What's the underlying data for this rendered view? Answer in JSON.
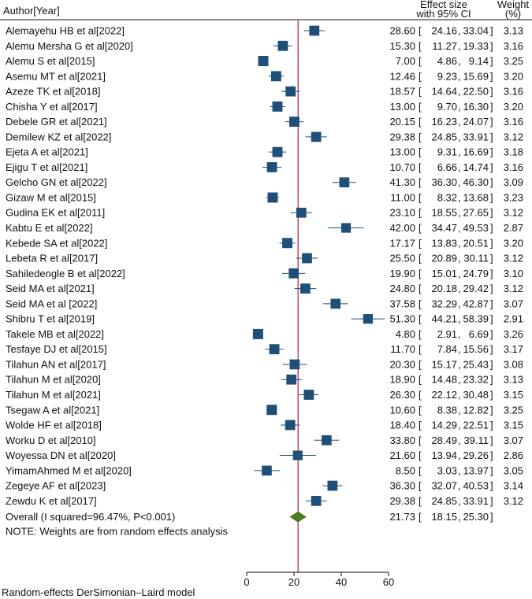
{
  "chart_data": {
    "type": "forest",
    "header": {
      "author_col": "Author[Year]",
      "effect_col_line1": "Effect size",
      "effect_col_line2": "with 95% CI",
      "weight_col_line1": "Weight",
      "weight_col_line2": "(%)"
    },
    "studies": [
      {
        "label": "Alemayehu HB et al[2022]",
        "es": 28.6,
        "lo": 24.16,
        "hi": 33.04,
        "es_text": "28.60",
        "lo_text": "24.16",
        "hi_text": "33.04",
        "weight": 3.13,
        "weight_text": "3.13"
      },
      {
        "label": "Alemu Mersha G et al[2020]",
        "es": 15.3,
        "lo": 11.27,
        "hi": 19.33,
        "es_text": "15.30",
        "lo_text": "11.27",
        "hi_text": "19.33",
        "weight": 3.16,
        "weight_text": "3.16"
      },
      {
        "label": "Alemu S et al[2015]",
        "es": 7.0,
        "lo": 4.86,
        "hi": 9.14,
        "es_text": "7.00",
        "lo_text": "4.86",
        "hi_text": "9.14",
        "weight": 3.25,
        "weight_text": "3.25"
      },
      {
        "label": "Asemu MT et al[2021]",
        "es": 12.46,
        "lo": 9.23,
        "hi": 15.69,
        "es_text": "12.46",
        "lo_text": "9.23",
        "hi_text": "15.69",
        "weight": 3.2,
        "weight_text": "3.20"
      },
      {
        "label": "Azeze TK et al[2018]",
        "es": 18.57,
        "lo": 14.64,
        "hi": 22.5,
        "es_text": "18.57",
        "lo_text": "14.64",
        "hi_text": "22.50",
        "weight": 3.16,
        "weight_text": "3.16"
      },
      {
        "label": "Chisha Y et al[2017]",
        "es": 13.0,
        "lo": 9.7,
        "hi": 16.3,
        "es_text": "13.00",
        "lo_text": "9.70",
        "hi_text": "16.30",
        "weight": 3.2,
        "weight_text": "3.20"
      },
      {
        "label": "Debele GR et al[2021]",
        "es": 20.15,
        "lo": 16.23,
        "hi": 24.07,
        "es_text": "20.15",
        "lo_text": "16.23",
        "hi_text": "24.07",
        "weight": 3.16,
        "weight_text": "3.16"
      },
      {
        "label": "Demilew KZ et al[2022]",
        "es": 29.38,
        "lo": 24.85,
        "hi": 33.91,
        "es_text": "29.38",
        "lo_text": "24.85",
        "hi_text": "33.91",
        "weight": 3.12,
        "weight_text": "3.12"
      },
      {
        "label": "Ejeta A et al[2021]",
        "es": 13.0,
        "lo": 9.31,
        "hi": 16.69,
        "es_text": "13.00",
        "lo_text": "9.31",
        "hi_text": "16.69",
        "weight": 3.18,
        "weight_text": "3.18"
      },
      {
        "label": "Ejigu T et al[2021]",
        "es": 10.7,
        "lo": 6.66,
        "hi": 14.74,
        "es_text": "10.70",
        "lo_text": "6.66",
        "hi_text": "14.74",
        "weight": 3.16,
        "weight_text": "3.16"
      },
      {
        "label": "Gelcho GN et al[2022]",
        "es": 41.3,
        "lo": 36.3,
        "hi": 46.3,
        "es_text": "41.30",
        "lo_text": "36.30",
        "hi_text": "46.30",
        "weight": 3.09,
        "weight_text": "3.09"
      },
      {
        "label": "Gizaw M et al[2015]",
        "es": 11.0,
        "lo": 8.32,
        "hi": 13.68,
        "es_text": "11.00",
        "lo_text": "8.32",
        "hi_text": "13.68",
        "weight": 3.23,
        "weight_text": "3.23"
      },
      {
        "label": "Gudina EK et al[2011]",
        "es": 23.1,
        "lo": 18.55,
        "hi": 27.65,
        "es_text": "23.10",
        "lo_text": "18.55",
        "hi_text": "27.65",
        "weight": 3.12,
        "weight_text": "3.12"
      },
      {
        "label": "Kabtu E et al[2022]",
        "es": 42.0,
        "lo": 34.47,
        "hi": 49.53,
        "es_text": "42.00",
        "lo_text": "34.47",
        "hi_text": "49.53",
        "weight": 2.87,
        "weight_text": "2.87"
      },
      {
        "label": "Kebede SA et al[2022]",
        "es": 17.17,
        "lo": 13.83,
        "hi": 20.51,
        "es_text": "17.17",
        "lo_text": "13.83",
        "hi_text": "20.51",
        "weight": 3.2,
        "weight_text": "3.20"
      },
      {
        "label": "Lebeta R et al[2017]",
        "es": 25.5,
        "lo": 20.89,
        "hi": 30.11,
        "es_text": "25.50",
        "lo_text": "20.89",
        "hi_text": "30.11",
        "weight": 3.12,
        "weight_text": "3.12"
      },
      {
        "label": "Sahiledengle B et al[2022]",
        "es": 19.9,
        "lo": 15.01,
        "hi": 24.79,
        "es_text": "19.90",
        "lo_text": "15.01",
        "hi_text": "24.79",
        "weight": 3.1,
        "weight_text": "3.10"
      },
      {
        "label": "Seid MA et al[2021]",
        "es": 24.8,
        "lo": 20.18,
        "hi": 29.42,
        "es_text": "24.80",
        "lo_text": "20.18",
        "hi_text": "29.42",
        "weight": 3.12,
        "weight_text": "3.12"
      },
      {
        "label": "Seid MA  et al [2022]",
        "es": 37.58,
        "lo": 32.29,
        "hi": 42.87,
        "es_text": "37.58",
        "lo_text": "32.29",
        "hi_text": "42.87",
        "weight": 3.07,
        "weight_text": "3.07"
      },
      {
        "label": "Shibru T et al[2019]",
        "es": 51.3,
        "lo": 44.21,
        "hi": 58.39,
        "es_text": "51.30",
        "lo_text": "44.21",
        "hi_text": "58.39",
        "weight": 2.91,
        "weight_text": "2.91"
      },
      {
        "label": "Takele MB et al[2022]",
        "es": 4.8,
        "lo": 2.91,
        "hi": 6.69,
        "es_text": "4.80",
        "lo_text": "2.91",
        "hi_text": "6.69",
        "weight": 3.26,
        "weight_text": "3.26"
      },
      {
        "label": "Tesfaye DJ et al[2015]",
        "es": 11.7,
        "lo": 7.84,
        "hi": 15.56,
        "es_text": "11.70",
        "lo_text": "7.84",
        "hi_text": "15.56",
        "weight": 3.17,
        "weight_text": "3.17"
      },
      {
        "label": "Tilahun AN et al[2017]",
        "es": 20.3,
        "lo": 15.17,
        "hi": 25.43,
        "es_text": "20.30",
        "lo_text": "15.17",
        "hi_text": "25.43",
        "weight": 3.08,
        "weight_text": "3.08"
      },
      {
        "label": "Tilahun M et al[2020]",
        "es": 18.9,
        "lo": 14.48,
        "hi": 23.32,
        "es_text": "18.90",
        "lo_text": "14.48",
        "hi_text": "23.32",
        "weight": 3.13,
        "weight_text": "3.13"
      },
      {
        "label": "Tilahun M et al[2021]",
        "es": 26.3,
        "lo": 22.12,
        "hi": 30.48,
        "es_text": "26.30",
        "lo_text": "22.12",
        "hi_text": "30.48",
        "weight": 3.15,
        "weight_text": "3.15"
      },
      {
        "label": "Tsegaw A et al[2021]",
        "es": 10.6,
        "lo": 8.38,
        "hi": 12.82,
        "es_text": "10.60",
        "lo_text": "8.38",
        "hi_text": "12.82",
        "weight": 3.25,
        "weight_text": "3.25"
      },
      {
        "label": "Wolde HF et al[2018]",
        "es": 18.4,
        "lo": 14.29,
        "hi": 22.51,
        "es_text": "18.40",
        "lo_text": "14.29",
        "hi_text": "22.51",
        "weight": 3.15,
        "weight_text": "3.15"
      },
      {
        "label": "Worku D et al[2010]",
        "es": 33.8,
        "lo": 28.49,
        "hi": 39.11,
        "es_text": "33.80",
        "lo_text": "28.49",
        "hi_text": "39.11",
        "weight": 3.07,
        "weight_text": "3.07"
      },
      {
        "label": "Woyessa DN et al[2020]",
        "es": 21.6,
        "lo": 13.94,
        "hi": 29.26,
        "es_text": "21.60",
        "lo_text": "13.94",
        "hi_text": "29.26",
        "weight": 2.86,
        "weight_text": "2.86"
      },
      {
        "label": "YimamAhmed M et al[2020]",
        "es": 8.5,
        "lo": 3.03,
        "hi": 13.97,
        "es_text": "8.50",
        "lo_text": "3.03",
        "hi_text": "13.97",
        "weight": 3.05,
        "weight_text": "3.05"
      },
      {
        "label": "Zegeye AF et al[2023]",
        "es": 36.3,
        "lo": 32.07,
        "hi": 40.53,
        "es_text": "36.30",
        "lo_text": "32.07",
        "hi_text": "40.53",
        "weight": 3.14,
        "weight_text": "3.14"
      },
      {
        "label": "Zewdu K et al[2017]",
        "es": 29.38,
        "lo": 24.85,
        "hi": 33.91,
        "es_text": "29.38",
        "lo_text": "24.85",
        "hi_text": "33.91",
        "weight": 3.12,
        "weight_text": "3.12"
      }
    ],
    "overall": {
      "label": "Overall (I squared=96.47%, P<0.001)",
      "es": 21.73,
      "lo": 18.15,
      "hi": 25.3,
      "es_text": "21.73",
      "lo_text": "18.15",
      "hi_text": "25.30"
    },
    "note": "NOTE: Weights are from random effects analysis",
    "footer": "Random-effects DerSimonian–Laird model",
    "xaxis": {
      "min": 0,
      "max": 60,
      "ticks": [
        0,
        20,
        40,
        60
      ],
      "tick_labels": [
        "0",
        "20",
        "40",
        "60"
      ]
    },
    "colors": {
      "square": "#1f4e79",
      "ci_line": "#1f4e79",
      "diamond": "#4f7a28",
      "ref_line": "#b22234",
      "text": "#111111"
    }
  }
}
